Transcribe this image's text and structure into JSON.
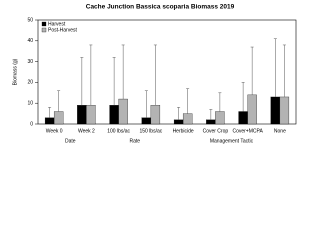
{
  "chart_data": {
    "type": "bar",
    "title": "Cache Junction Bassica scoparia Biomass 2019",
    "ylabel": "Biomass (g)",
    "categories": [
      "Week 0",
      "Week 2",
      "100 lbs/ac",
      "150 lbs/ac",
      "Herbicide",
      "Cover Crop",
      "Cover+MCPA",
      "None"
    ],
    "groups": [
      {
        "label": "Date",
        "size": 2
      },
      {
        "label": "Rate",
        "size": 2
      },
      {
        "label": "Management Tactic",
        "size": 4
      }
    ],
    "series": [
      {
        "name": "Harvest",
        "color": "#000000",
        "values": [
          3,
          9,
          9,
          3,
          2,
          2,
          6,
          13
        ],
        "errors": [
          5,
          23,
          23,
          13,
          6,
          5,
          14,
          28
        ]
      },
      {
        "name": "Post-Harvest",
        "color": "#b3b3b3",
        "values": [
          6,
          9,
          12,
          9,
          5,
          6,
          14,
          13
        ],
        "errors": [
          10,
          29,
          26,
          29,
          12,
          9,
          23,
          25
        ]
      }
    ],
    "ylim": [
      0,
      50
    ],
    "yticks": [
      0,
      10,
      20,
      30,
      40,
      50
    ],
    "legend": "top-left"
  }
}
